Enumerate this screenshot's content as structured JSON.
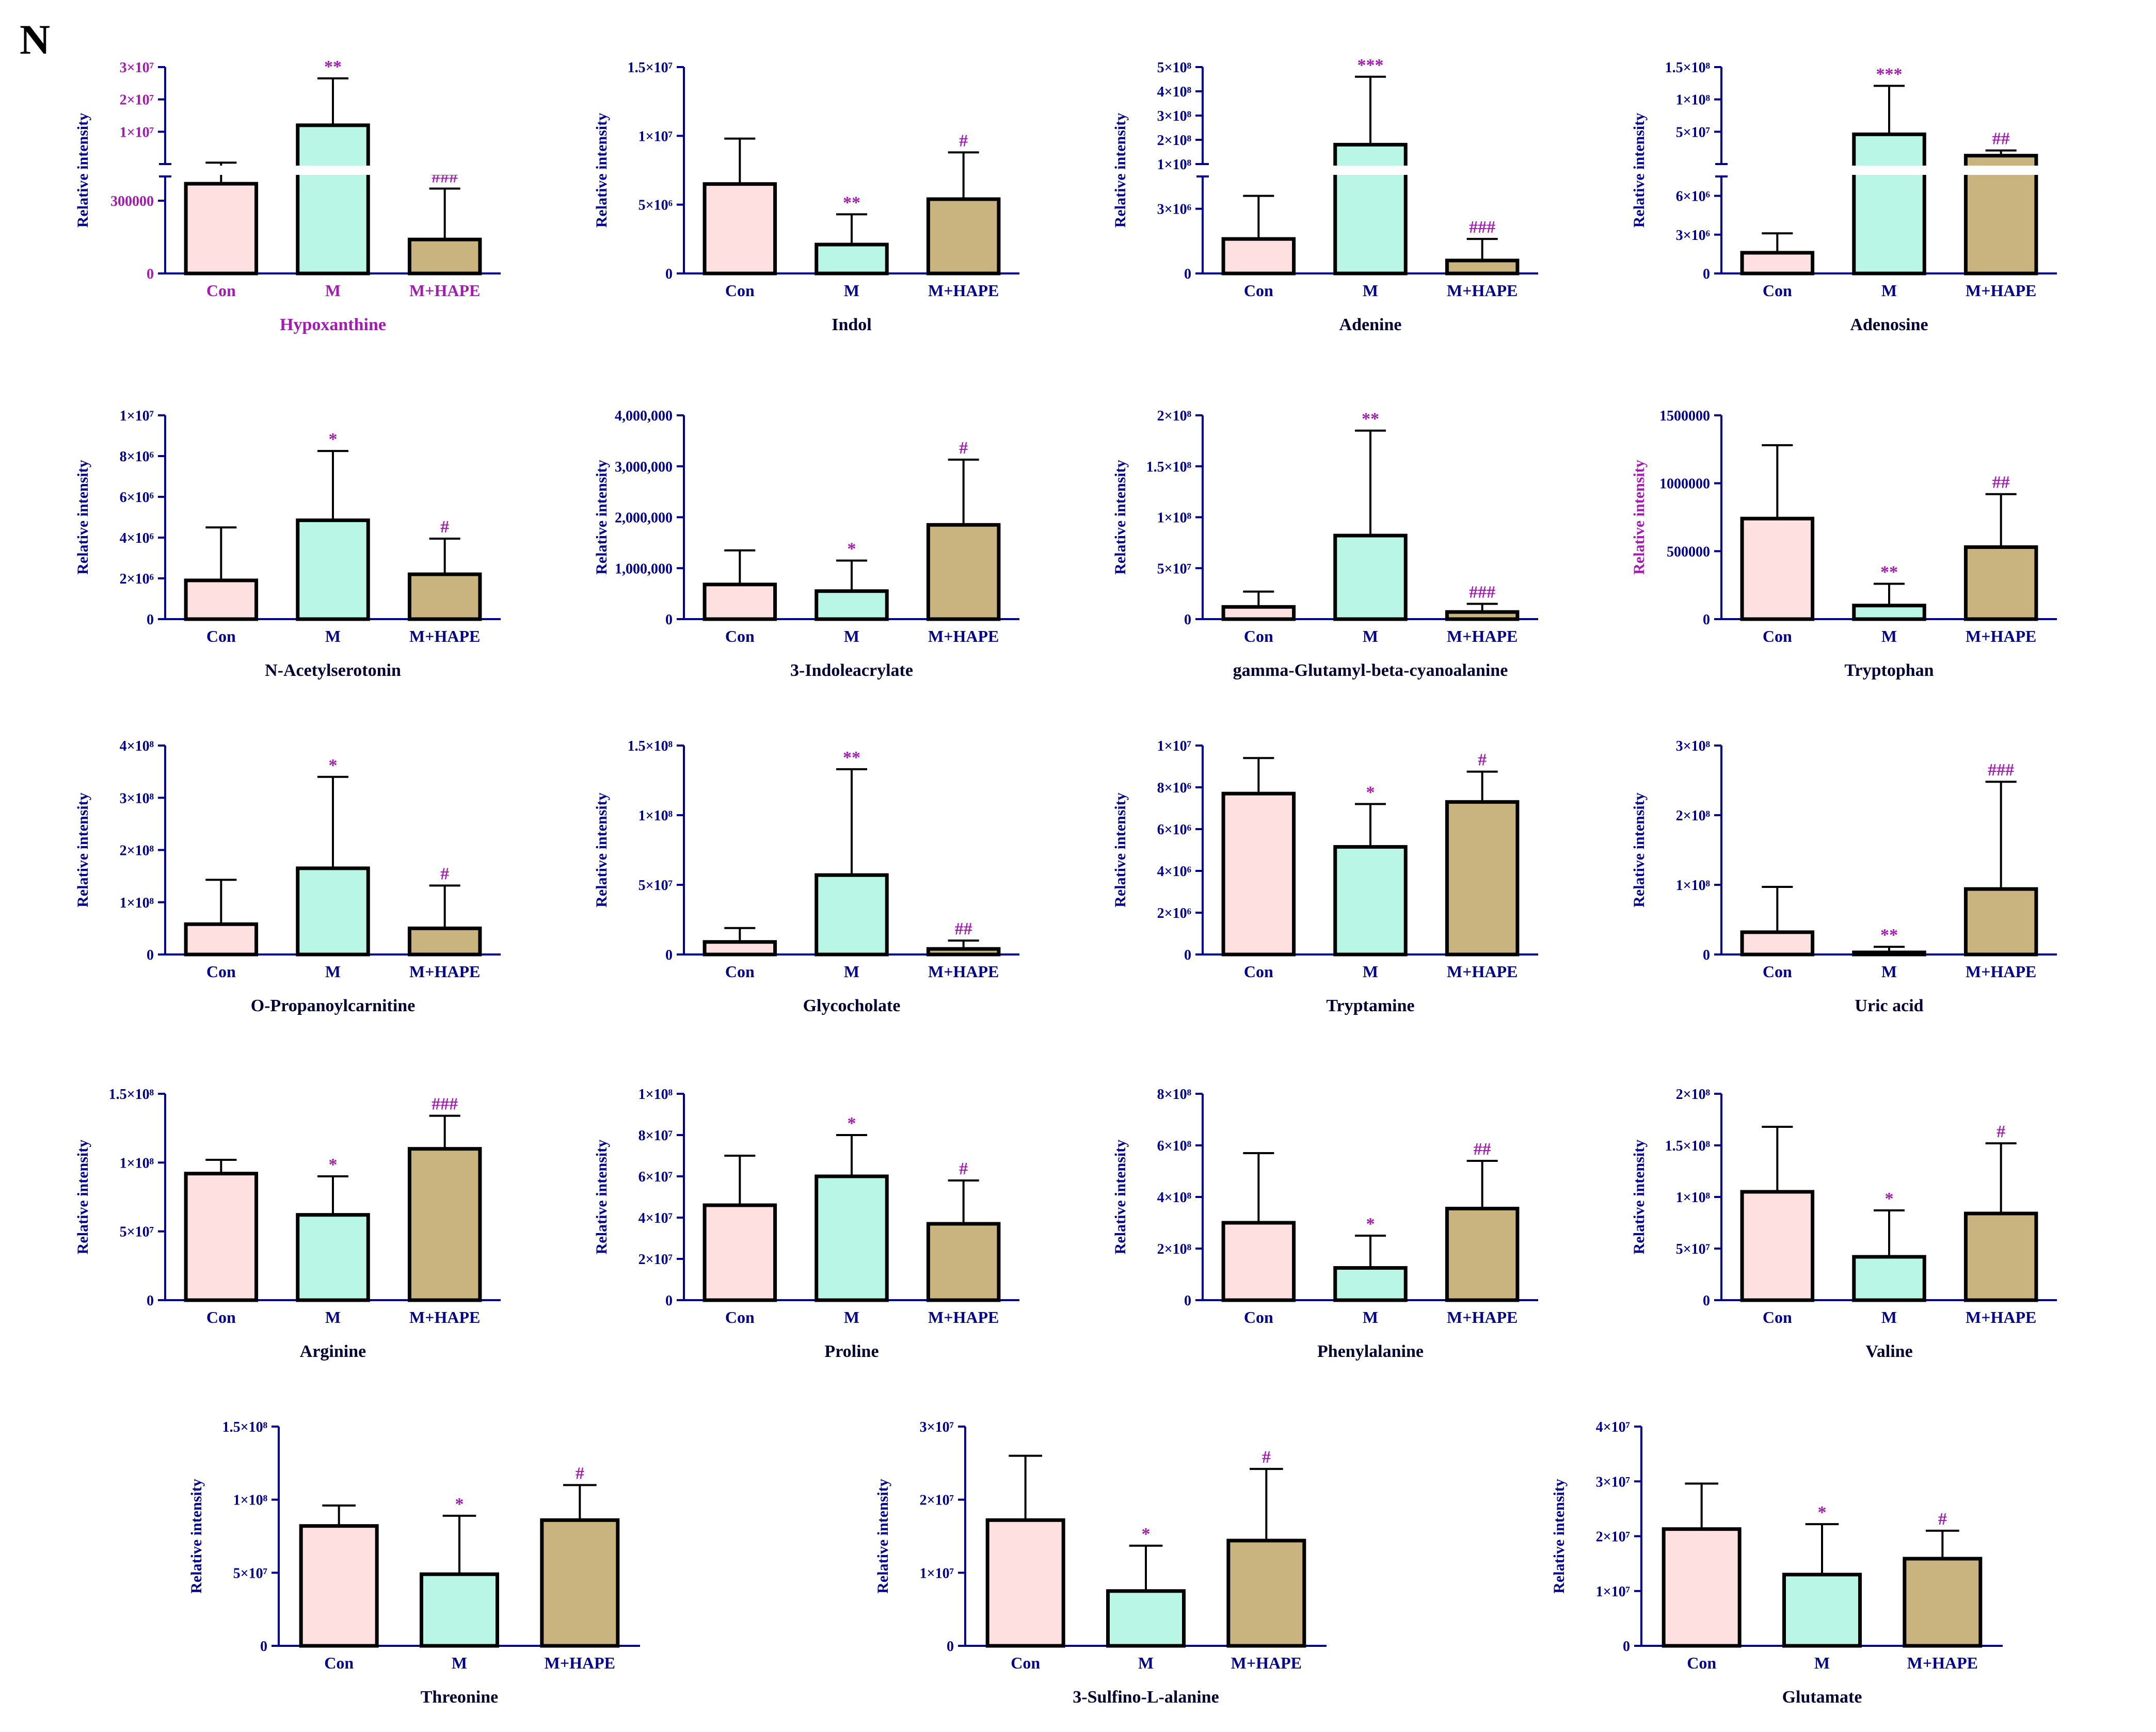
{
  "panel_label": "N",
  "colors": {
    "axis": "#00008B",
    "tick_text": "#00008B",
    "magenta": "#A21CAF",
    "con_fill": "#FFE0E0",
    "m_fill": "#B9F6E6",
    "hape_fill": "#C9B37E",
    "bar_stroke": "#000000"
  },
  "chart_data": [
    {
      "type": "bar",
      "title": "Hypoxanthine",
      "ylabel": "Relative intensity",
      "categories": [
        "Con",
        "M",
        "M+HAPE"
      ],
      "values": [
        370000,
        12000000,
        140000
      ],
      "errors": [
        60000,
        14500000,
        210000
      ],
      "ytick_labels": [
        "0",
        "300000",
        "1×10⁷",
        "2×10⁷",
        "3×10⁷"
      ],
      "broken_axis": {
        "lower_ylim": [
          0,
          400000
        ],
        "upper_ylim": [
          0,
          30000000
        ],
        "lower_ticks": [
          0,
          300000
        ],
        "upper_ticks": [
          10000000,
          20000000,
          30000000
        ]
      },
      "significance": [
        "",
        "**",
        "###"
      ],
      "title_color": "magenta"
    },
    {
      "type": "bar",
      "title": "Indol",
      "ylabel": "Relative intensity",
      "categories": [
        "Con",
        "M",
        "M+HAPE"
      ],
      "values": [
        6500000,
        2100000,
        5400000
      ],
      "errors": [
        3300000,
        2200000,
        3400000
      ],
      "ylim": [
        0,
        15000000
      ],
      "yticks": [
        0,
        5000000,
        10000000,
        15000000
      ],
      "ytick_labels": [
        "0",
        "5×10⁶",
        "1×10⁷",
        "1.5×10⁷"
      ],
      "significance": [
        "",
        "**",
        "#"
      ]
    },
    {
      "type": "bar",
      "title": "Adenine",
      "ylabel": "Relative intensity",
      "categories": [
        "Con",
        "M",
        "M+HAPE"
      ],
      "values": [
        1600000,
        180000000,
        600000
      ],
      "errors": [
        2000000,
        280000000,
        1000000
      ],
      "ytick_labels": [
        "0",
        "3×10⁶",
        "1×10⁸",
        "2×10⁸",
        "3×10⁸",
        "4×10⁸",
        "5×10⁸"
      ],
      "broken_axis": {
        "lower_ylim": [
          0,
          4500000
        ],
        "upper_ylim": [
          100000000,
          500000000
        ],
        "lower_ticks": [
          0,
          3000000
        ],
        "upper_ticks": [
          100000000,
          200000000,
          300000000,
          400000000,
          500000000
        ]
      },
      "significance": [
        "",
        "***",
        "###"
      ]
    },
    {
      "type": "bar",
      "title": "Adenosine",
      "ylabel": "Relative intensity",
      "categories": [
        "Con",
        "M",
        "M+HAPE"
      ],
      "values": [
        1600000,
        46000000,
        13000000
      ],
      "errors": [
        1500000,
        75000000,
        8000000
      ],
      "ytick_labels": [
        "0",
        "3×10⁶",
        "6×10⁶",
        "5×10⁷",
        "1×10⁸",
        "1.5×10⁸"
      ],
      "broken_axis": {
        "lower_ylim": [
          0,
          7500000
        ],
        "upper_ylim": [
          0,
          150000000
        ],
        "lower_ticks": [
          0,
          3000000,
          6000000
        ],
        "upper_ticks": [
          50000000,
          100000000,
          150000000
        ]
      },
      "significance": [
        "",
        "***",
        "##"
      ]
    },
    {
      "type": "bar",
      "title": "N-Acetylserotonin",
      "ylabel": "Relative intensity",
      "categories": [
        "Con",
        "M",
        "M+HAPE"
      ],
      "values": [
        1900000,
        4850000,
        2200000
      ],
      "errors": [
        2600000,
        3400000,
        1750000
      ],
      "ylim": [
        0,
        10000000
      ],
      "yticks": [
        0,
        2000000,
        4000000,
        6000000,
        8000000,
        10000000
      ],
      "ytick_labels": [
        "0",
        "2×10⁶",
        "4×10⁶",
        "6×10⁶",
        "8×10⁶",
        "1×10⁷"
      ],
      "significance": [
        "",
        "*",
        "#"
      ]
    },
    {
      "type": "bar",
      "title": "3-Indoleacrylate",
      "ylabel": "Relative intensity",
      "categories": [
        "Con",
        "M",
        "M+HAPE"
      ],
      "values": [
        680000,
        550000,
        1850000
      ],
      "errors": [
        670000,
        600000,
        1280000
      ],
      "ylim": [
        0,
        4000000
      ],
      "yticks": [
        0,
        1000000,
        2000000,
        3000000,
        4000000
      ],
      "ytick_labels": [
        "0",
        "1,000,000",
        "2,000,000",
        "3,000,000",
        "4,000,000"
      ],
      "significance": [
        "",
        "*",
        "#"
      ]
    },
    {
      "type": "bar",
      "title": "gamma-Glutamyl-beta-cyanoalanine",
      "ylabel": "Relative intensity",
      "categories": [
        "Con",
        "M",
        "M+HAPE"
      ],
      "values": [
        12000000,
        82000000,
        7000000
      ],
      "errors": [
        15000000,
        103000000,
        8000000
      ],
      "ylim": [
        0,
        200000000
      ],
      "yticks": [
        0,
        50000000,
        100000000,
        150000000,
        200000000
      ],
      "ytick_labels": [
        "0",
        "5×10⁷",
        "1×10⁸",
        "1.5×10⁸",
        "2×10⁸"
      ],
      "significance": [
        "",
        "**",
        "###"
      ]
    },
    {
      "type": "bar",
      "title": "Tryptophan",
      "ylabel": "Relative intensity",
      "ylabel_color": "magenta",
      "categories": [
        "Con",
        "M",
        "M+HAPE"
      ],
      "values": [
        740000,
        100000,
        530000
      ],
      "errors": [
        540000,
        160000,
        390000
      ],
      "ylim": [
        0,
        1500000
      ],
      "yticks": [
        0,
        500000,
        1000000,
        1500000
      ],
      "ytick_labels": [
        "0",
        "500000",
        "1000000",
        "1500000"
      ],
      "significance": [
        "",
        "**",
        "##"
      ]
    },
    {
      "type": "bar",
      "title": "O-Propanoylcarnitine",
      "ylabel": "Relative intensity",
      "categories": [
        "Con",
        "M",
        "M+HAPE"
      ],
      "values": [
        58000000,
        165000000,
        50000000
      ],
      "errors": [
        85000000,
        175000000,
        82000000
      ],
      "ylim": [
        0,
        400000000
      ],
      "yticks": [
        0,
        100000000,
        200000000,
        300000000,
        400000000
      ],
      "ytick_labels": [
        "0",
        "1×10⁸",
        "2×10⁸",
        "3×10⁸",
        "4×10⁸"
      ],
      "significance": [
        "",
        "*",
        "#"
      ]
    },
    {
      "type": "bar",
      "title": "Glycocholate",
      "ylabel": "Relative intensity",
      "categories": [
        "Con",
        "M",
        "M+HAPE"
      ],
      "values": [
        9000000,
        57000000,
        4000000
      ],
      "errors": [
        10000000,
        76000000,
        6000000
      ],
      "ylim": [
        0,
        150000000
      ],
      "yticks": [
        0,
        50000000,
        100000000,
        150000000
      ],
      "ytick_labels": [
        "0",
        "5×10⁷",
        "1×10⁸",
        "1.5×10⁸"
      ],
      "significance": [
        "",
        "**",
        "##"
      ]
    },
    {
      "type": "bar",
      "title": "Tryptamine",
      "ylabel": "Relative intensity",
      "categories": [
        "Con",
        "M",
        "M+HAPE"
      ],
      "values": [
        7700000,
        5150000,
        7300000
      ],
      "errors": [
        1700000,
        2050000,
        1450000
      ],
      "ylim": [
        0,
        10000000
      ],
      "yticks": [
        0,
        2000000,
        4000000,
        6000000,
        8000000,
        10000000
      ],
      "ytick_labels": [
        "0",
        "2×10⁶",
        "4×10⁶",
        "6×10⁶",
        "8×10⁶",
        "1×10⁷"
      ],
      "significance": [
        "",
        "*",
        "#"
      ]
    },
    {
      "type": "bar",
      "title": "Uric acid",
      "ylabel": "Relative intensity",
      "categories": [
        "Con",
        "M",
        "M+HAPE"
      ],
      "values": [
        32000000,
        3000000,
        94000000
      ],
      "errors": [
        65000000,
        8000000,
        154000000
      ],
      "ylim": [
        0,
        300000000
      ],
      "yticks": [
        0,
        100000000,
        200000000,
        300000000
      ],
      "ytick_labels": [
        "0",
        "1×10⁸",
        "2×10⁸",
        "3×10⁸"
      ],
      "significance": [
        "",
        "**",
        "###"
      ]
    },
    {
      "type": "bar",
      "title": "Arginine",
      "ylabel": "Relative intensity",
      "categories": [
        "Con",
        "M",
        "M+HAPE"
      ],
      "values": [
        92000000,
        62000000,
        110000000
      ],
      "errors": [
        10000000,
        28000000,
        24000000
      ],
      "ylim": [
        0,
        150000000
      ],
      "yticks": [
        0,
        50000000,
        100000000,
        150000000
      ],
      "ytick_labels": [
        "0",
        "5×10⁷",
        "1×10⁸",
        "1.5×10⁸"
      ],
      "significance": [
        "",
        "*",
        "###"
      ]
    },
    {
      "type": "bar",
      "title": "Proline",
      "ylabel": "Relative intensity",
      "categories": [
        "Con",
        "M",
        "M+HAPE"
      ],
      "values": [
        46000000,
        60000000,
        37000000
      ],
      "errors": [
        24000000,
        20000000,
        21000000
      ],
      "ylim": [
        0,
        100000000
      ],
      "yticks": [
        0,
        20000000,
        40000000,
        60000000,
        80000000,
        100000000
      ],
      "ytick_labels": [
        "0",
        "2×10⁷",
        "4×10⁷",
        "6×10⁷",
        "8×10⁷",
        "1×10⁸"
      ],
      "significance": [
        "",
        "*",
        "#"
      ]
    },
    {
      "type": "bar",
      "title": "Phenylalanine",
      "ylabel": "Relative intensity",
      "categories": [
        "Con",
        "M",
        "M+HAPE"
      ],
      "values": [
        300000000,
        125000000,
        355000000
      ],
      "errors": [
        270000000,
        125000000,
        185000000
      ],
      "ylim": [
        0,
        800000000
      ],
      "yticks": [
        0,
        200000000,
        400000000,
        600000000,
        800000000
      ],
      "ytick_labels": [
        "0",
        "2×10⁸",
        "4×10⁸",
        "6×10⁸",
        "8×10⁸"
      ],
      "significance": [
        "",
        "*",
        "##"
      ]
    },
    {
      "type": "bar",
      "title": "Valine",
      "ylabel": "Relative intensity",
      "categories": [
        "Con",
        "M",
        "M+HAPE"
      ],
      "values": [
        105000000,
        42000000,
        84000000
      ],
      "errors": [
        63000000,
        45000000,
        68000000
      ],
      "ylim": [
        0,
        200000000
      ],
      "yticks": [
        0,
        50000000,
        100000000,
        150000000,
        200000000
      ],
      "ytick_labels": [
        "0",
        "5×10⁷",
        "1×10⁸",
        "1.5×10⁸",
        "2×10⁸"
      ],
      "significance": [
        "",
        "*",
        "#"
      ]
    },
    {
      "type": "bar",
      "title": "Threonine",
      "ylabel": "Relative intensity",
      "categories": [
        "Con",
        "M",
        "M+HAPE"
      ],
      "values": [
        82000000,
        49000000,
        86000000
      ],
      "errors": [
        14000000,
        40000000,
        24000000
      ],
      "ylim": [
        0,
        150000000
      ],
      "yticks": [
        0,
        50000000,
        100000000,
        150000000
      ],
      "ytick_labels": [
        "0",
        "5×10⁷",
        "1×10⁸",
        "1.5×10⁸"
      ],
      "significance": [
        "",
        "*",
        "#"
      ]
    },
    {
      "type": "bar",
      "title": "3-Sulfino-L-alanine",
      "ylabel": "Relative intensity",
      "categories": [
        "Con",
        "M",
        "M+HAPE"
      ],
      "values": [
        17200000,
        7500000,
        14400000
      ],
      "errors": [
        8800000,
        6200000,
        9800000
      ],
      "ylim": [
        0,
        30000000
      ],
      "yticks": [
        0,
        10000000,
        20000000,
        30000000
      ],
      "ytick_labels": [
        "0",
        "1×10⁷",
        "2×10⁷",
        "3×10⁷"
      ],
      "significance": [
        "",
        "*",
        "#"
      ]
    },
    {
      "type": "bar",
      "title": "Glutamate",
      "ylabel": "Relative intensity",
      "categories": [
        "Con",
        "M",
        "M+HAPE"
      ],
      "values": [
        21300000,
        13000000,
        15900000
      ],
      "errors": [
        8300000,
        9200000,
        5100000
      ],
      "ylim": [
        0,
        40000000
      ],
      "yticks": [
        0,
        10000000,
        20000000,
        30000000,
        40000000
      ],
      "ytick_labels": [
        "0",
        "1×10⁷",
        "2×10⁷",
        "3×10⁷",
        "4×10⁷"
      ],
      "significance": [
        "",
        "*",
        "#"
      ]
    }
  ]
}
